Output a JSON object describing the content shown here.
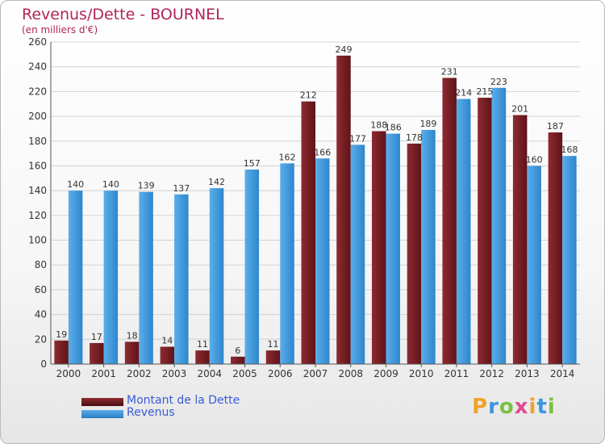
{
  "header": {
    "title": "Revenus/Dette - BOURNEL",
    "subtitle": "(en milliers d'€)"
  },
  "legend": {
    "dette_label": "Montant de la Dette",
    "revenus_label": "Revenus"
  },
  "logo": {
    "text": "Proxiti"
  },
  "colors": {
    "dette": "#7a1e24",
    "revenus": "#3b96dc",
    "title": "#b0245a",
    "legend_text": "#3a5bd9"
  },
  "chart_data": {
    "type": "bar",
    "categories": [
      "2000",
      "2001",
      "2002",
      "2003",
      "2004",
      "2005",
      "2006",
      "2007",
      "2008",
      "2009",
      "2010",
      "2011",
      "2012",
      "2013",
      "2014"
    ],
    "series": [
      {
        "name": "Montant de la Dette",
        "values": [
          19,
          17,
          18,
          14,
          11,
          6,
          11,
          212,
          249,
          188,
          178,
          231,
          215,
          201,
          187
        ]
      },
      {
        "name": "Revenus",
        "values": [
          140,
          140,
          139,
          137,
          142,
          157,
          162,
          166,
          177,
          186,
          189,
          214,
          223,
          160,
          168
        ]
      }
    ],
    "yticks": [
      0,
      20,
      40,
      60,
      80,
      100,
      120,
      140,
      160,
      180,
      200,
      220,
      240,
      260
    ],
    "ylim": [
      0,
      260
    ],
    "grid": true,
    "legend_position": "bottom-left"
  }
}
